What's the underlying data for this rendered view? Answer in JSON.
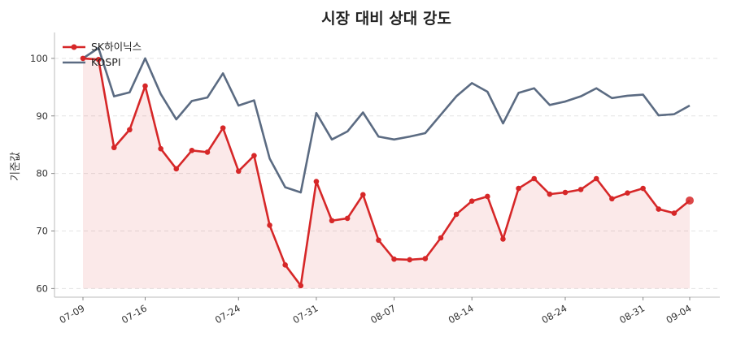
{
  "chart_data": {
    "type": "line",
    "title": "시장 대비 상대 강도",
    "xlabel": "",
    "ylabel": "기준값",
    "ylim": [
      58.5,
      104.5
    ],
    "yticks": [
      60,
      70,
      80,
      90,
      100
    ],
    "x_tick_labels": [
      "07-09",
      "07-16",
      "07-24",
      "07-31",
      "08-07",
      "08-14",
      "08-24",
      "08-31",
      "09-04"
    ],
    "x_tick_indices": [
      0,
      4,
      10,
      15,
      20,
      25,
      31,
      36,
      39
    ],
    "grid": "horizontal dashed",
    "legend_position": "top-left",
    "series": [
      {
        "name": "SK하이닉스",
        "color": "#d62728",
        "marker": "circle",
        "fill_area": true,
        "values": [
          100.0,
          99.8,
          84.5,
          87.6,
          95.2,
          84.3,
          80.8,
          84.0,
          83.7,
          87.9,
          80.4,
          83.1,
          71.0,
          64.1,
          60.5,
          78.6,
          71.8,
          72.2,
          76.3,
          68.4,
          65.1,
          65.0,
          65.2,
          68.8,
          72.9,
          75.2,
          76.0,
          68.6,
          77.4,
          79.1,
          76.4,
          76.7,
          77.2,
          79.1,
          75.6,
          76.6,
          77.4,
          73.8,
          73.1,
          75.3
        ]
      },
      {
        "name": "KOSPI",
        "color": "#5b6b82",
        "marker": "none",
        "fill_area": false,
        "values": [
          100.0,
          101.8,
          93.4,
          94.1,
          100.0,
          93.8,
          89.4,
          92.6,
          93.2,
          97.4,
          91.8,
          92.7,
          82.6,
          77.6,
          76.7,
          90.5,
          85.9,
          87.3,
          90.6,
          86.4,
          85.9,
          86.4,
          87.0,
          90.2,
          93.4,
          95.7,
          94.2,
          88.7,
          94.0,
          94.8,
          91.9,
          92.5,
          93.4,
          94.8,
          93.1,
          93.5,
          93.7,
          90.1,
          90.3,
          91.8
        ]
      }
    ]
  }
}
